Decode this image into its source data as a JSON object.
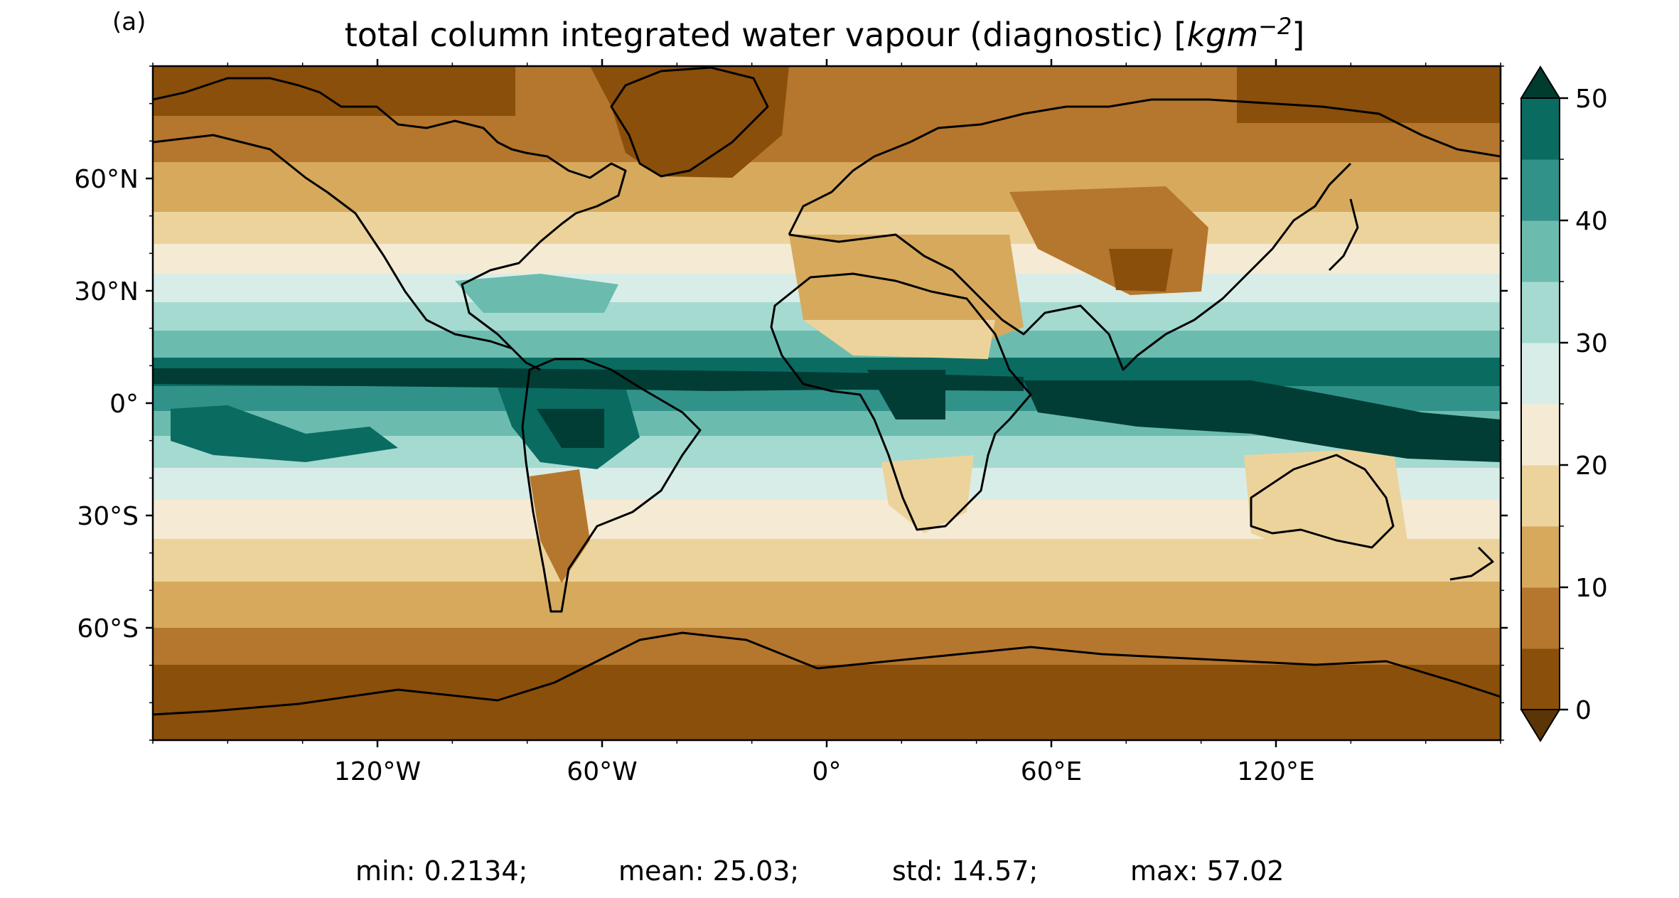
{
  "panel_label": "(a)",
  "title_main": "total column integrated water vapour (diagnostic) [",
  "title_unit_main": "kgm",
  "title_unit_exp": "−2",
  "title_end": "]",
  "stats": {
    "min_text": "min: 0.2134;",
    "mean_text": "mean: 25.03;",
    "std_text": "std: 14.57;",
    "max_text": "max: 57.02"
  },
  "map": {
    "projection": "PlateCarree",
    "lon_range": [
      -180,
      180
    ],
    "lat_range": [
      -90,
      90
    ],
    "lat_ticks": [
      {
        "value": 60,
        "label": "60°N"
      },
      {
        "value": 30,
        "label": "30°N"
      },
      {
        "value": 0,
        "label": "0°"
      },
      {
        "value": -30,
        "label": "30°S"
      },
      {
        "value": -60,
        "label": "60°S"
      }
    ],
    "lon_ticks": [
      {
        "value": -120,
        "label": "120°W"
      },
      {
        "value": -60,
        "label": "60°W"
      },
      {
        "value": 0,
        "label": "0°"
      },
      {
        "value": 60,
        "label": "60°E"
      },
      {
        "value": 120,
        "label": "120°E"
      }
    ],
    "coastlines": "black"
  },
  "colorbar": {
    "colormap": "BrBG",
    "extend": "both",
    "levels": [
      0,
      5,
      10,
      15,
      20,
      25,
      30,
      35,
      40,
      45,
      50
    ],
    "colors": [
      "#8a4f0a",
      "#b5772d",
      "#d6a95c",
      "#ecd39c",
      "#f5ead4",
      "#d9ede8",
      "#a5dad1",
      "#6bbcaf",
      "#31928a",
      "#0a6b61",
      "#013d35"
    ],
    "under_color": "#5c3507",
    "over_color": "#003c30",
    "tick_labels": [
      {
        "value": 0,
        "label": "0"
      },
      {
        "value": 10,
        "label": "10"
      },
      {
        "value": 20,
        "label": "20"
      },
      {
        "value": 30,
        "label": "30"
      },
      {
        "value": 40,
        "label": "40"
      },
      {
        "value": 50,
        "label": "50"
      }
    ]
  }
}
